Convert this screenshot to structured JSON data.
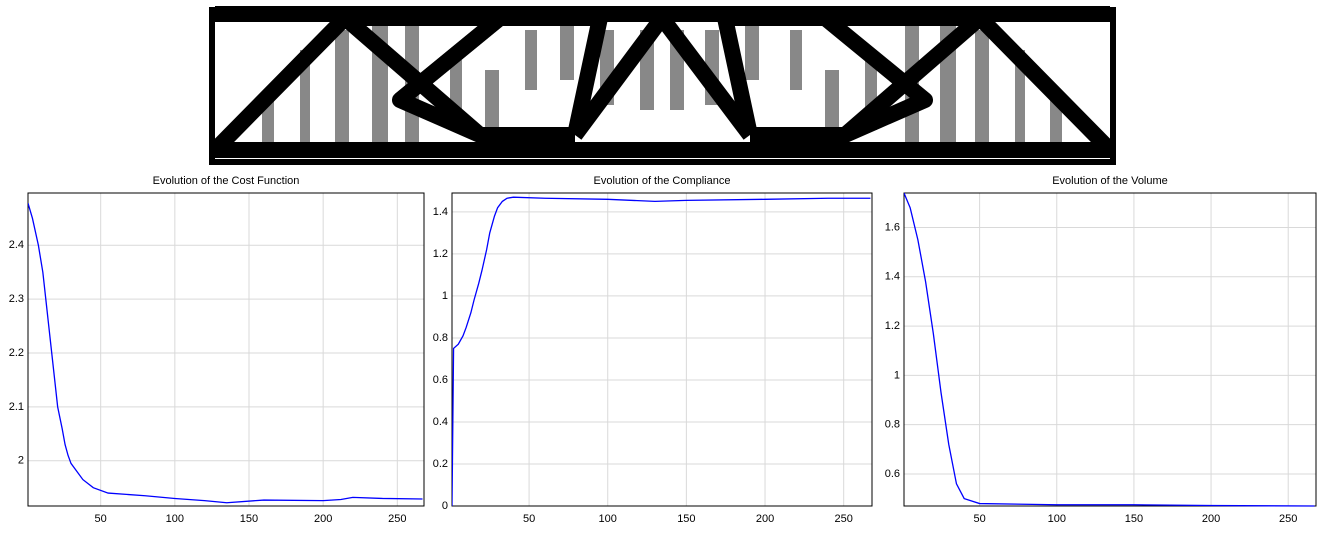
{
  "chart_data": [
    {
      "type": "line",
      "title": "Evolution of the Cost Function",
      "color": "#0000ff",
      "grid": true,
      "x": [
        1,
        4,
        8,
        11,
        13,
        15,
        17,
        19,
        21,
        24,
        26,
        28,
        30,
        34,
        38,
        45,
        55,
        80,
        100,
        120,
        135,
        160,
        200,
        212,
        220,
        240,
        267
      ],
      "values": [
        2.478,
        2.45,
        2.4,
        2.35,
        2.3,
        2.25,
        2.2,
        2.15,
        2.1,
        2.06,
        2.03,
        2.01,
        1.995,
        1.98,
        1.965,
        1.95,
        1.94,
        1.935,
        1.93,
        1.926,
        1.922,
        1.927,
        1.926,
        1.928,
        1.932,
        1.93,
        1.929
      ],
      "xlim": [
        1,
        268
      ],
      "ylim": [
        1.916,
        2.497
      ],
      "xticks": [
        50,
        100,
        150,
        200,
        250
      ],
      "yticks": [
        2,
        2.1,
        2.2,
        2.3,
        2.4
      ]
    },
    {
      "type": "line",
      "title": "Evolution of the Compliance",
      "color": "#0000ff",
      "grid": true,
      "x": [
        1,
        2,
        5,
        8,
        10,
        13,
        15,
        18,
        20,
        23,
        25,
        28,
        30,
        33,
        36,
        40,
        60,
        100,
        130,
        150,
        200,
        240,
        267
      ],
      "values": [
        0,
        0.75,
        0.77,
        0.81,
        0.85,
        0.92,
        0.98,
        1.06,
        1.12,
        1.22,
        1.3,
        1.38,
        1.42,
        1.45,
        1.465,
        1.47,
        1.465,
        1.46,
        1.45,
        1.455,
        1.46,
        1.465,
        1.465
      ],
      "xlim": [
        1,
        268
      ],
      "ylim": [
        0,
        1.49
      ],
      "xticks": [
        50,
        100,
        150,
        200,
        250
      ],
      "yticks": [
        0,
        0.2,
        0.4,
        0.6,
        0.8,
        1,
        1.2,
        1.4
      ]
    },
    {
      "type": "line",
      "title": "Evolution of the Volume",
      "color": "#0000ff",
      "grid": true,
      "x": [
        1,
        5,
        10,
        15,
        20,
        25,
        30,
        35,
        40,
        50,
        100,
        150,
        200,
        267
      ],
      "values": [
        1.74,
        1.68,
        1.55,
        1.38,
        1.17,
        0.93,
        0.72,
        0.56,
        0.5,
        0.48,
        0.475,
        0.475,
        0.472,
        0.47
      ],
      "xlim": [
        1,
        268
      ],
      "ylim": [
        0.47,
        1.74
      ],
      "xticks": [
        50,
        100,
        150,
        200,
        250
      ],
      "yticks": [
        0.6,
        0.8,
        1,
        1.2,
        1.4,
        1.6
      ]
    }
  ]
}
